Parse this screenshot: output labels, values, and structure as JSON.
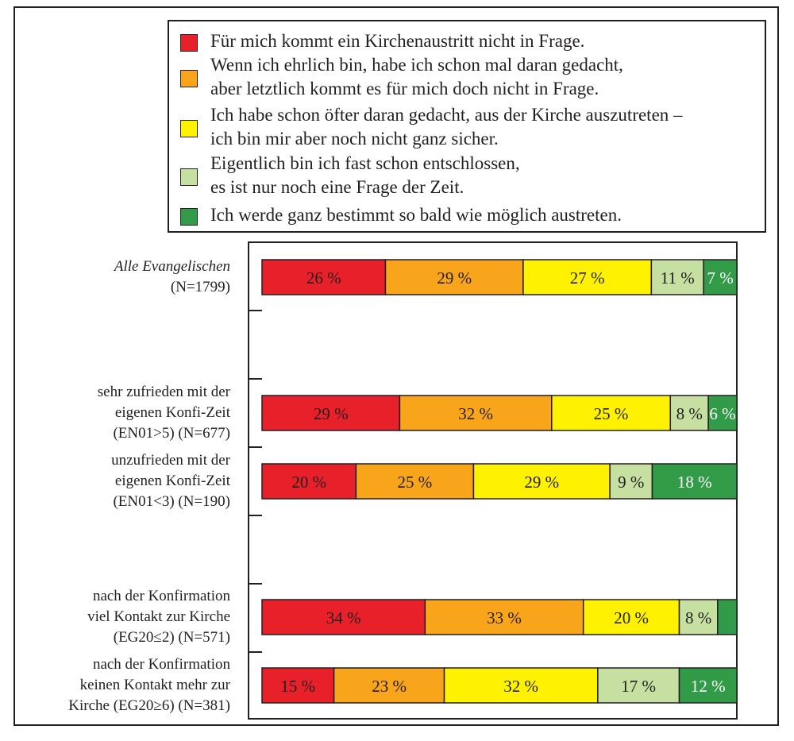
{
  "chart_data": {
    "type": "bar",
    "orientation": "horizontal",
    "stacked": true,
    "normalized": true,
    "legend_position": "top-right",
    "grid": false,
    "series": [
      {
        "name": "Für mich kommt ein Kirchenaustritt nicht in Frage.",
        "color": "#e8202a",
        "values": [
          26,
          29,
          20,
          34,
          15
        ]
      },
      {
        "name": "Wenn ich ehrlich bin, habe ich schon mal daran gedacht,\naber letztlich kommt es für mich doch nicht in Frage.",
        "color": "#f8a51c",
        "values": [
          29,
          32,
          25,
          33,
          23
        ]
      },
      {
        "name": "Ich habe schon öfter daran gedacht, aus der Kirche auszutreten –\nich bin mir aber noch nicht ganz sicher.",
        "color": "#fef200",
        "values": [
          27,
          25,
          29,
          20,
          32
        ]
      },
      {
        "name": "Eigentlich bin ich fast schon entschlossen,\nes ist nur noch eine Frage der Zeit.",
        "color": "#c5e0a0",
        "values": [
          11,
          8,
          9,
          8,
          17
        ]
      },
      {
        "name": "Ich werde ganz bestimmt so bald wie möglich austreten.",
        "color": "#319b48",
        "values": [
          7,
          6,
          18,
          4,
          12
        ]
      }
    ],
    "data_labels": [
      [
        "26 %",
        "29 %",
        "27 %",
        "11 %",
        "7 %"
      ],
      [
        "29 %",
        "32 %",
        "25 %",
        "8 %",
        "6 %"
      ],
      [
        "20 %",
        "25 %",
        "29 %",
        "9 %",
        "18 %"
      ],
      [
        "34 %",
        "33 %",
        "20 %",
        "8 %",
        ""
      ],
      [
        "15 %",
        "23 %",
        "32 %",
        "17 %",
        "12 %"
      ]
    ],
    "categories": [
      "Alle Evangelischen\n(N=1799)",
      "sehr zufrieden mit der\neigenen Konfi-Zeit\n(EN01>5) (N=677)",
      "unzufrieden mit der\neigenen Konfi-Zeit\n(EN01<3) (N=190)",
      "nach der Konfirmation\nviel Kontakt zur Kirche\n(EG20≤2) (N=571)",
      "nach der Konfirmation\nkeinen Kontakt mehr zur\nKirche (EG20≥6) (N=381)"
    ],
    "category_styles": [
      "italic-first-line",
      "normal",
      "normal",
      "normal",
      "normal"
    ]
  }
}
